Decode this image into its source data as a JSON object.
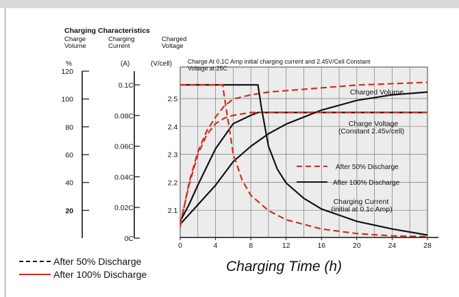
{
  "chart_data": {
    "type": "line",
    "title": "Charging Characteristics",
    "annotation": "Charge At 0.1C Amp initial charging current  and 2.45V/Cell Constant Voltage  at 25C",
    "xlabel": "Charging Time (h)",
    "x_ticks": [
      0,
      4,
      8,
      12,
      16,
      20,
      24,
      28
    ],
    "xlim": [
      0,
      28
    ],
    "grid": true,
    "axes": [
      {
        "header": [
          "Charge",
          "Volume"
        ],
        "unit": "%",
        "ticks": [
          "120",
          "100",
          "80",
          "60",
          "40",
          "20"
        ],
        "range": [
          0,
          120
        ]
      },
      {
        "header": [
          "Charging",
          "Current"
        ],
        "unit": "(A)",
        "ticks": [
          "0.1C",
          "0.08C",
          "0.06C",
          "0.04C",
          "0.02C",
          "0C"
        ],
        "range": [
          0,
          0.1
        ]
      },
      {
        "header": [
          "Charged",
          "Voltage"
        ],
        "unit": "(V/cell)",
        "ticks": [
          "2.5",
          "2.4",
          "2.3",
          "2.2",
          "2.1"
        ],
        "range": [
          2.0,
          2.5
        ]
      }
    ],
    "curve_labels": {
      "volume": "Charged Volume",
      "voltage": [
        "Charge Voltage",
        "(Constant 2.45v/cell)"
      ],
      "current": [
        "Charging Current",
        "(initial at 0.1c Amp)"
      ]
    },
    "legend_inner": [
      "After 50% Discharge",
      "After 100% Discharge"
    ],
    "legend_outer": [
      "After 50% Discharge",
      "After 100% Discharge"
    ],
    "colors": {
      "after_50": "#d62a1e",
      "after_100": "#111111",
      "grid": "#7a7a7a",
      "plot_bg": "#ececec"
    },
    "series": [
      {
        "name": "After 100% Discharge",
        "quantity": "Charged Volume",
        "axis": "volume",
        "x": [
          0,
          2,
          4,
          6,
          8,
          10,
          12,
          16,
          20,
          24,
          28
        ],
        "y": [
          10,
          24,
          38,
          55,
          66,
          75,
          82,
          92,
          99,
          103,
          105
        ]
      },
      {
        "name": "After 50% Discharge",
        "quantity": "Charged Volume",
        "axis": "volume",
        "x": [
          0,
          1,
          2,
          3,
          4,
          5,
          6,
          8,
          10,
          12,
          16,
          20,
          24,
          28
        ],
        "y": [
          8,
          40,
          62,
          77,
          87,
          95,
          100,
          103,
          105,
          106,
          108,
          110,
          111,
          112
        ]
      },
      {
        "name": "After 100% Discharge",
        "quantity": "Charge Voltage",
        "axis": "voltage",
        "x": [
          0,
          1,
          2,
          4,
          6,
          8,
          8.8,
          9.2,
          12,
          16,
          20,
          24,
          28
        ],
        "y": [
          2.06,
          2.12,
          2.19,
          2.32,
          2.41,
          2.44,
          2.45,
          2.45,
          2.45,
          2.45,
          2.45,
          2.45,
          2.45
        ]
      },
      {
        "name": "After 50% Discharge",
        "quantity": "Charge Voltage",
        "axis": "voltage",
        "x": [
          0,
          0.5,
          1,
          2,
          3,
          4,
          5,
          6,
          8,
          12,
          16,
          20,
          24,
          28
        ],
        "y": [
          2.05,
          2.12,
          2.19,
          2.3,
          2.37,
          2.41,
          2.43,
          2.44,
          2.45,
          2.45,
          2.45,
          2.45,
          2.45,
          2.45
        ]
      },
      {
        "name": "After 100% Discharge",
        "quantity": "Charging Current",
        "axis": "current",
        "x": [
          0,
          8.8,
          9.2,
          10,
          11,
          12,
          14,
          16,
          20,
          24,
          28
        ],
        "y": [
          0.1,
          0.1,
          0.085,
          0.06,
          0.045,
          0.036,
          0.026,
          0.019,
          0.011,
          0.006,
          0.002
        ]
      },
      {
        "name": "After 50% Discharge",
        "quantity": "Charging Current",
        "axis": "current",
        "x": [
          0,
          4.8,
          5.2,
          6,
          7,
          8,
          10,
          12,
          16,
          20,
          24,
          28
        ],
        "y": [
          0.1,
          0.1,
          0.085,
          0.055,
          0.038,
          0.028,
          0.018,
          0.012,
          0.006,
          0.003,
          0.0015,
          0.001
        ]
      }
    ]
  }
}
